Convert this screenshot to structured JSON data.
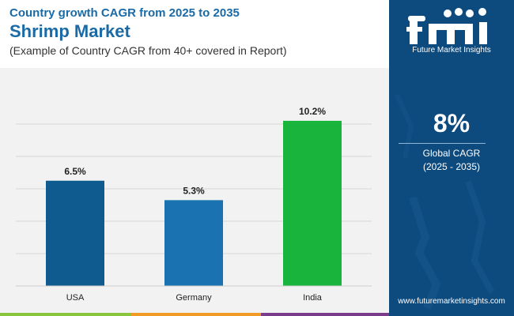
{
  "header": {
    "subtitle": "Country growth CAGR from 2025 to 2035",
    "title": "Shrimp Market",
    "note": "(Example of Country CAGR from 40+ covered in Report)"
  },
  "chart_data": {
    "type": "bar",
    "categories": [
      "USA",
      "Germany",
      "India"
    ],
    "values": [
      6.5,
      5.3,
      10.2
    ],
    "value_labels": [
      "6.5%",
      "5.3%",
      "10.2%"
    ],
    "colors": [
      "#0f5a8e",
      "#1a72b0",
      "#19b43c"
    ],
    "ylim": [
      0,
      12
    ],
    "gridlines": [
      2,
      4,
      6,
      8,
      10
    ],
    "grid": true,
    "legend": "none",
    "xlabel": "",
    "ylabel": ""
  },
  "sidebar": {
    "brand": "Future Market Insights",
    "kpi_value": "8%",
    "kpi_label": "Global CAGR",
    "kpi_years": "(2025 - 2035)",
    "website": "www.futuremarketinsights.com"
  },
  "colors": {
    "sidebar_bg": "#0d4a7e",
    "title": "#1a6aa6",
    "stripe_green": "#8ac53e",
    "stripe_orange": "#f29a26",
    "stripe_purple": "#7b3c8c"
  }
}
